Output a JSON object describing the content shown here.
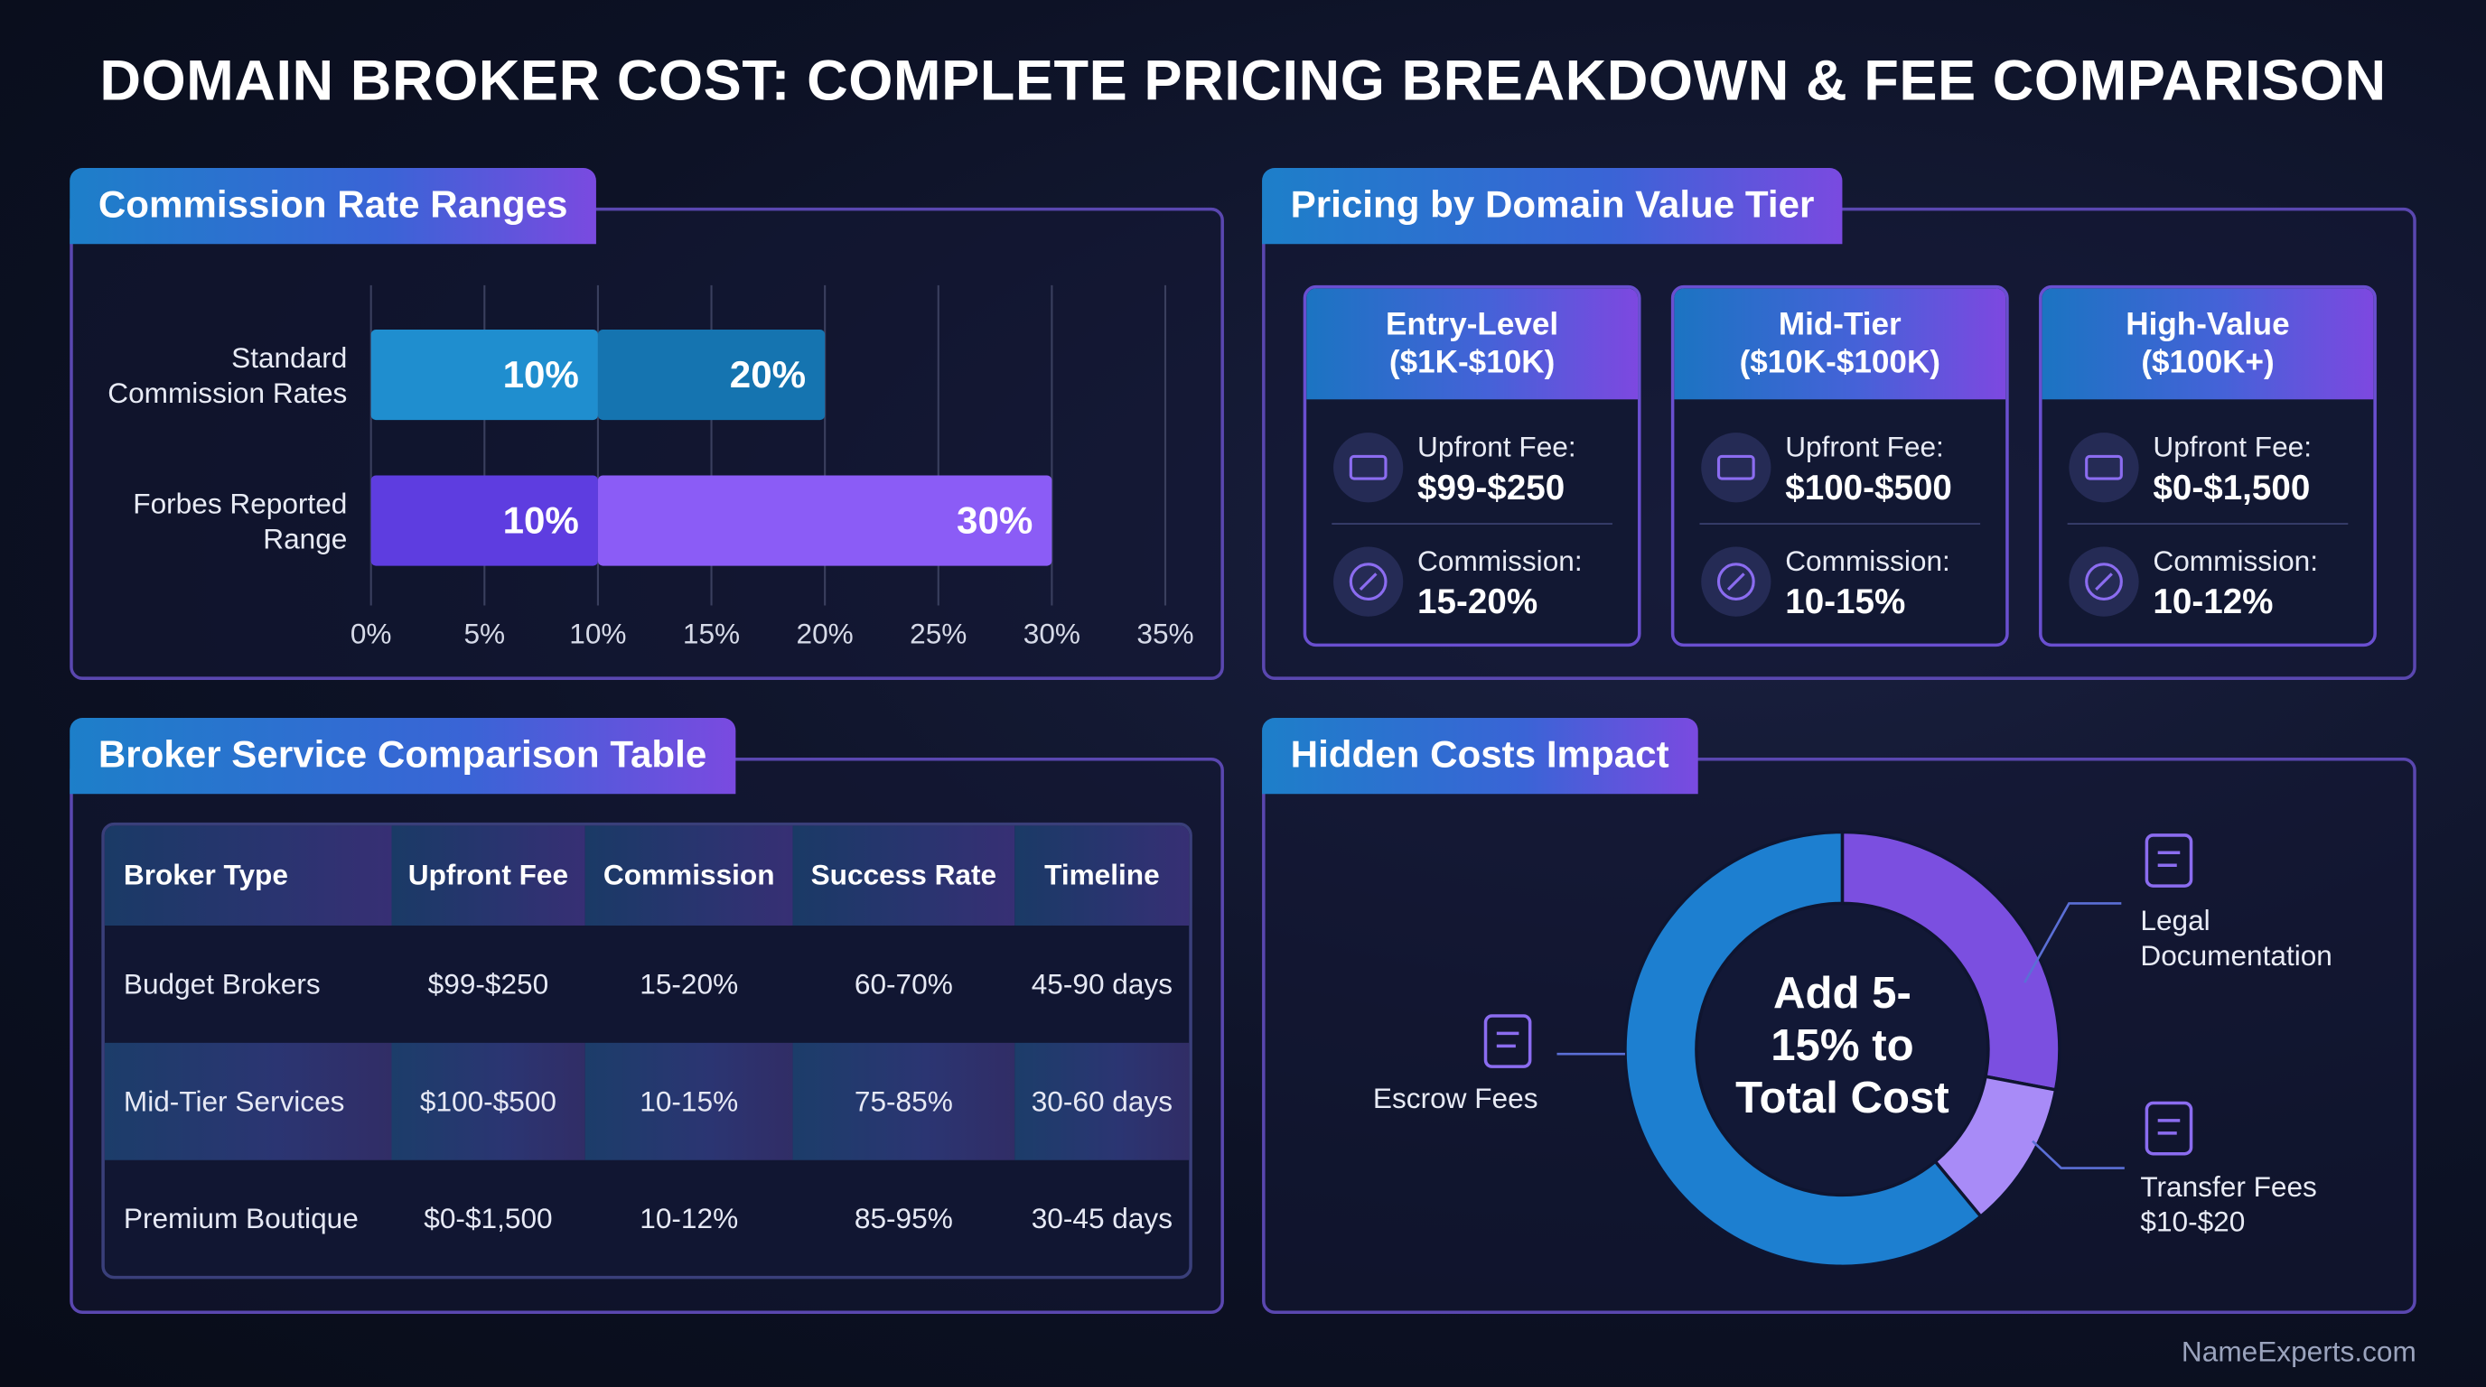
{
  "title": "DOMAIN BROKER COST: COMPLETE PRICING BREAKDOWN & FEE COMPARISON",
  "chart_data": [
    {
      "type": "range_bar",
      "title": "Commission Rate Ranges",
      "categories": [
        "Standard Commission Rates",
        "Forbes Reported Range"
      ],
      "series": [
        {
          "colors": [
            "#1f8ecf",
            "#5e3de0"
          ],
          "values": [
            10,
            10
          ],
          "value_labels": [
            "10%",
            "10%"
          ]
        },
        {
          "colors": [
            "#1574b0",
            "#8b5cf6"
          ],
          "values": [
            20,
            30
          ],
          "value_labels": [
            "20%",
            "30%"
          ]
        }
      ],
      "xlim": [
        0,
        35
      ],
      "xticks": [
        {
          "value": 0,
          "label": "0%"
        },
        {
          "value": 5,
          "label": "5%"
        },
        {
          "value": 10,
          "label": "10%"
        },
        {
          "value": 15,
          "label": "15%"
        },
        {
          "value": 20,
          "label": "20%"
        },
        {
          "value": 25,
          "label": "25%"
        },
        {
          "value": 30,
          "label": "30%"
        },
        {
          "value": 35,
          "label": "35%"
        }
      ],
      "grid": true
    },
    {
      "type": "donut",
      "title": "Hidden Costs Impact",
      "center_text": "Add 5-15% to Total Cost",
      "categories": [
        "Legal Documentation",
        "Transfer Fees",
        "Escrow Fees"
      ],
      "notes": [
        null,
        "$10-$20",
        null
      ],
      "values": [
        28,
        11,
        61
      ],
      "colors": [
        "#7b4fe0",
        "#a88bf7",
        "#1d7fd0"
      ]
    }
  ],
  "tiers": {
    "title": "Pricing by Domain Value Tier",
    "cards": [
      {
        "title": "Entry-Level ($1K-$10K)",
        "fee_label": "Upfront Fee:",
        "fee": "$99-$250",
        "commission_label": "Commission:",
        "commission": "15-20%"
      },
      {
        "title": "Mid-Tier ($10K-$100K)",
        "fee_label": "Upfront Fee:",
        "fee": "$100-$500",
        "commission_label": "Commission:",
        "commission": "10-15%"
      },
      {
        "title": "High-Value ($100K+)",
        "fee_label": "Upfront Fee:",
        "fee": "$0-$1,500",
        "commission_label": "Commission:",
        "commission": "10-12%"
      }
    ]
  },
  "table": {
    "title": "Broker Service Comparison Table",
    "header": [
      "Broker Type",
      "Upfront Fee",
      "Commission",
      "Success Rate",
      "Timeline"
    ],
    "rows": [
      [
        "Budget Brokers",
        "$99-$250",
        "15-20%",
        "60-70%",
        "45-90 days"
      ],
      [
        "Mid-Tier Services",
        "$100-$500",
        "10-15%",
        "75-85%",
        "30-60 days"
      ],
      [
        "Premium Boutique",
        "$0-$1,500",
        "10-12%",
        "85-95%",
        "30-45 days"
      ]
    ]
  },
  "footer": "NameExperts.com"
}
